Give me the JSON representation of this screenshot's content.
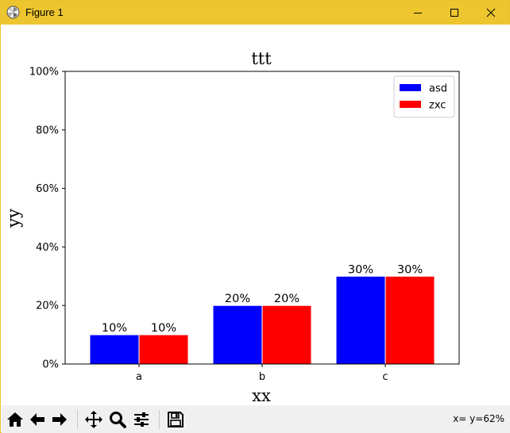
{
  "window": {
    "title": "Figure 1",
    "titlebar_color": "#ecc52f",
    "controls": [
      "minimize-icon",
      "maximize-icon",
      "close-icon"
    ]
  },
  "toolbar": {
    "buttons": [
      {
        "name": "home-button",
        "icon": "home-icon"
      },
      {
        "name": "back-button",
        "icon": "arrow-left-icon"
      },
      {
        "name": "forward-button",
        "icon": "arrow-right-icon"
      },
      {
        "name": "pan-button",
        "icon": "move-icon"
      },
      {
        "name": "zoom-button",
        "icon": "magnifier-icon"
      },
      {
        "name": "configure-subplots-button",
        "icon": "sliders-icon"
      },
      {
        "name": "save-button",
        "icon": "floppy-disk-icon"
      }
    ],
    "coordinates": "x= y=62%"
  },
  "chart_data": {
    "type": "bar",
    "title": "ttt",
    "xlabel": "xx",
    "ylabel": "yy",
    "categories": [
      "a",
      "b",
      "c"
    ],
    "series": [
      {
        "name": "asd",
        "color": "#0000ff",
        "values": [
          10,
          20,
          30
        ],
        "labels": [
          "10%",
          "20%",
          "30%"
        ]
      },
      {
        "name": "zxc",
        "color": "#ff0000",
        "values": [
          10,
          20,
          30
        ],
        "labels": [
          "10%",
          "20%",
          "30%"
        ]
      }
    ],
    "ylim": [
      0,
      100
    ],
    "yticks": [
      0,
      20,
      40,
      60,
      80,
      100
    ],
    "ytick_labels": [
      "0%",
      "20%",
      "40%",
      "60%",
      "80%",
      "100%"
    ],
    "legend_position": "top-right",
    "grid": false
  }
}
